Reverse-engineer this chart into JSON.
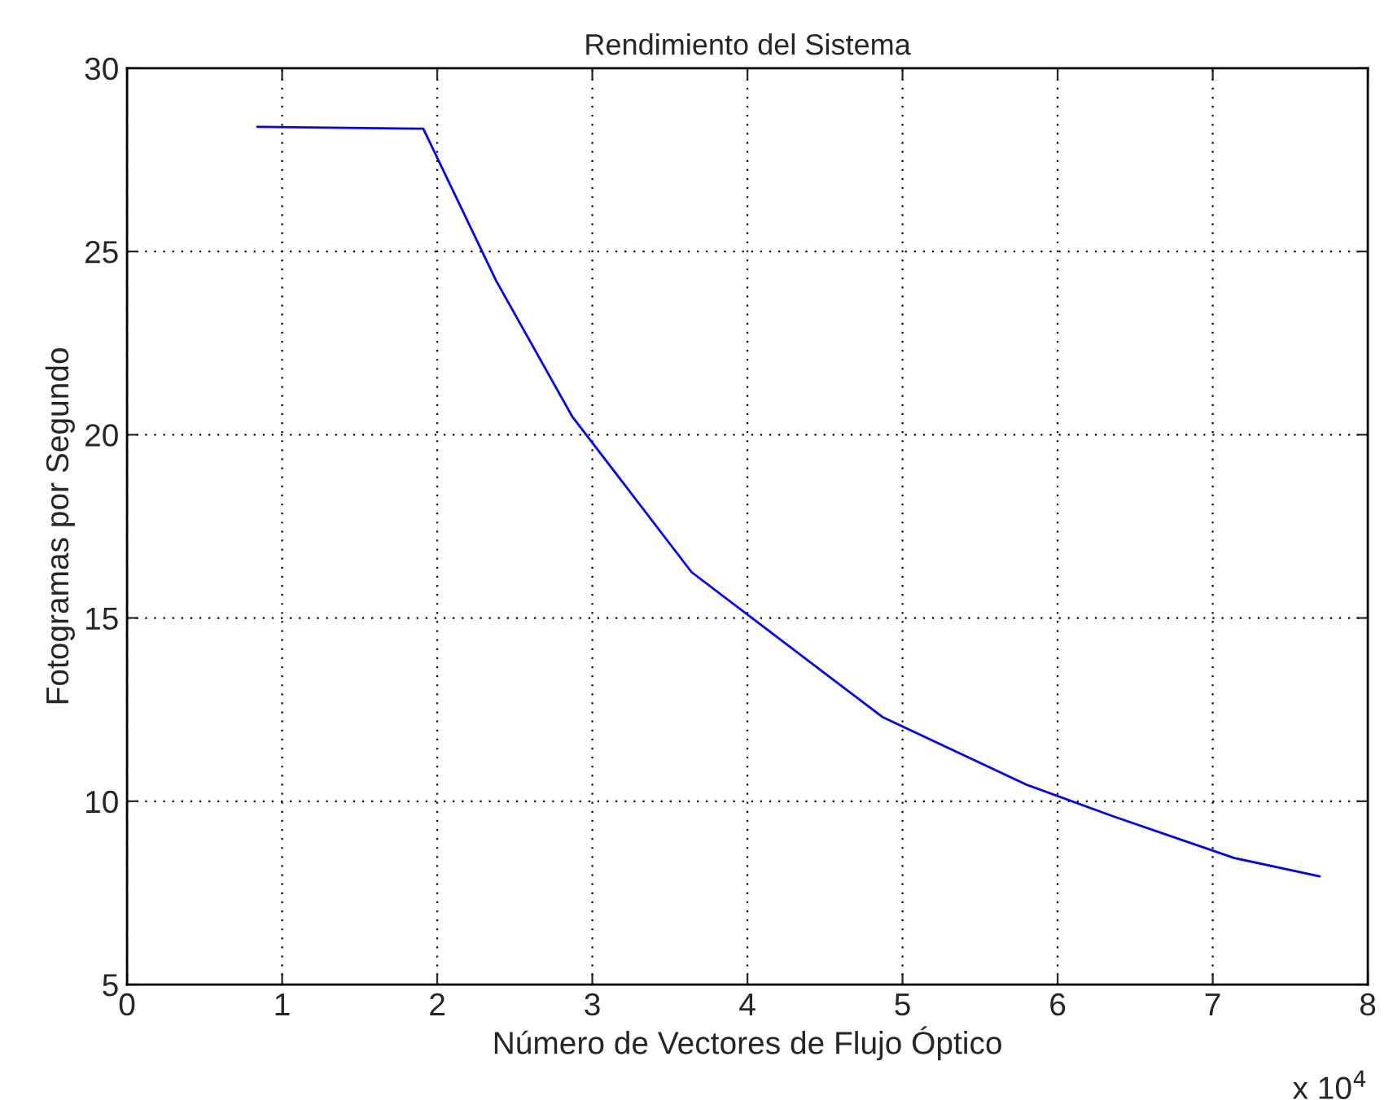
{
  "chart_data": {
    "type": "line",
    "title": "Rendimiento del Sistema",
    "xlabel": "Número de Vectores de Flujo Óptico",
    "ylabel": "Fotogramas por Segundo",
    "annotations": [
      "x 10$^{4}$"
    ],
    "series": [
      {
        "color": "#0000ff",
        "x": [
          0.84,
          1.91,
          2.38,
          2.87,
          3.64,
          4.87,
          5.8,
          6.35,
          7.14,
          7.69
        ],
        "values": [
          28.4,
          28.35,
          24.2,
          20.5,
          16.25,
          12.3,
          10.45,
          9.6,
          8.45,
          7.95
        ]
      }
    ],
    "xlim": [
      0,
      8
    ],
    "xticks": [
      0,
      1,
      2,
      3,
      4,
      5,
      6,
      7,
      8
    ],
    "ylim": [
      5,
      30
    ],
    "yticks": [
      5,
      10,
      15,
      20,
      25,
      30
    ],
    "grid": true,
    "marker": "none",
    "line_style": "solid"
  }
}
